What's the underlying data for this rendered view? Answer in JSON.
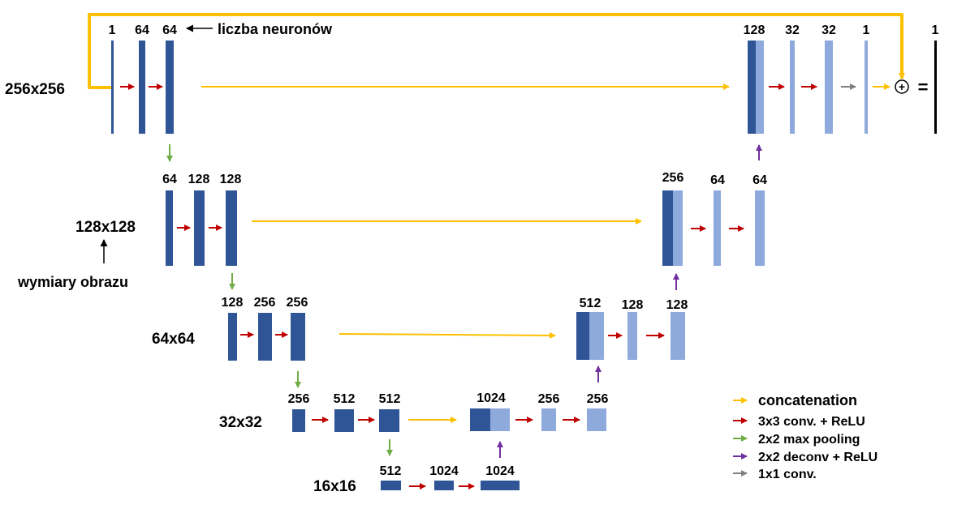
{
  "colors": {
    "encoder_block": "#2F5597",
    "decoder_block": "#8EA9DB",
    "concatenation": "#FFC000",
    "conv_relu": "#C00000",
    "max_pooling": "#70AD47",
    "deconv_relu": "#7030A0",
    "conv_1x1": "#808080",
    "annotation": "#000000"
  },
  "annotations": {
    "neurons_label": "liczba neuronów",
    "image_size_label": "wymiary obrazu"
  },
  "levels": [
    {
      "size": "256x256",
      "encoder": [
        "1",
        "64",
        "64"
      ],
      "decoder": [
        "128",
        "32",
        "32",
        "1"
      ]
    },
    {
      "size": "128x128",
      "encoder": [
        "64",
        "128",
        "128"
      ],
      "decoder": [
        "256",
        "64",
        "64"
      ]
    },
    {
      "size": "64x64",
      "encoder": [
        "128",
        "256",
        "256"
      ],
      "decoder": [
        "512",
        "128",
        "128"
      ]
    },
    {
      "size": "32x32",
      "encoder": [
        "256",
        "512",
        "512"
      ],
      "decoder": [
        "1024",
        "256",
        "256"
      ]
    },
    {
      "size": "16x16",
      "encoder": [
        "512",
        "1024",
        "1024"
      ],
      "decoder": []
    }
  ],
  "output": {
    "label": "1",
    "plus_symbol": "+",
    "equals_symbol": "="
  },
  "legend": [
    {
      "label": "concatenation",
      "color_key": "concatenation"
    },
    {
      "label": "3x3 conv. + ReLU",
      "color_key": "conv_relu"
    },
    {
      "label": "2x2 max pooling",
      "color_key": "max_pooling"
    },
    {
      "label": "2x2 deconv + ReLU",
      "color_key": "deconv_relu"
    },
    {
      "label": "1x1 conv.",
      "color_key": "conv_1x1"
    }
  ]
}
